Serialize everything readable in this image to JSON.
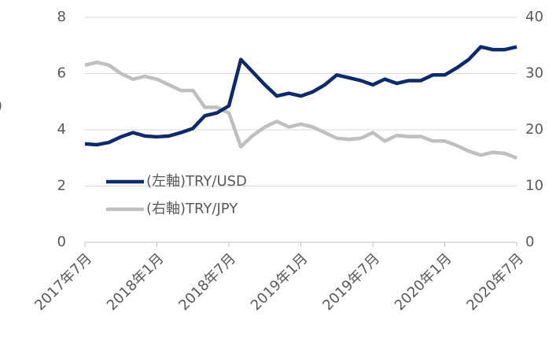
{
  "chart_data": {
    "type": "line",
    "y_label": ")",
    "categories": [
      "2017年7月",
      null,
      null,
      null,
      null,
      null,
      "2018年1月",
      null,
      null,
      null,
      null,
      null,
      "2018年7月",
      null,
      null,
      null,
      null,
      null,
      "2019年1月",
      null,
      null,
      null,
      null,
      null,
      "2019年7月",
      null,
      null,
      null,
      null,
      null,
      "2020年1月",
      null,
      null,
      null,
      null,
      null,
      "2020年7月"
    ],
    "series": [
      {
        "name": "(左軸)TRY/USD",
        "color": "#0e2a6b",
        "axis": "y",
        "values": [
          3.5,
          3.47,
          3.55,
          3.75,
          3.9,
          3.78,
          3.75,
          3.78,
          3.9,
          4.05,
          4.5,
          4.6,
          4.85,
          6.5,
          6.05,
          5.6,
          5.2,
          5.3,
          5.2,
          5.35,
          5.6,
          5.95,
          5.85,
          5.75,
          5.6,
          5.8,
          5.65,
          5.75,
          5.75,
          5.95,
          5.95,
          6.2,
          6.5,
          6.95,
          6.85,
          6.85,
          6.95
        ]
      },
      {
        "name": "(右軸)TRY/JPY",
        "color": "#bfbfbf",
        "axis": "y2",
        "values": [
          31.5,
          32,
          31.5,
          30,
          29,
          29.5,
          29,
          28,
          27,
          27,
          24,
          24,
          23,
          17,
          19,
          20.5,
          21.5,
          20.5,
          21,
          20.5,
          19.5,
          18.5,
          18.3,
          18.5,
          19.5,
          18,
          19,
          18.8,
          18.8,
          18,
          18,
          17.2,
          16.2,
          15.5,
          16,
          15.8,
          15
        ]
      }
    ],
    "ylim": [
      0,
      8
    ],
    "yticks": [
      0,
      2,
      4,
      6,
      8
    ],
    "y2lim": [
      0,
      40
    ],
    "y2ticks": [
      0,
      10,
      20,
      30,
      40
    ],
    "grid": true
  }
}
